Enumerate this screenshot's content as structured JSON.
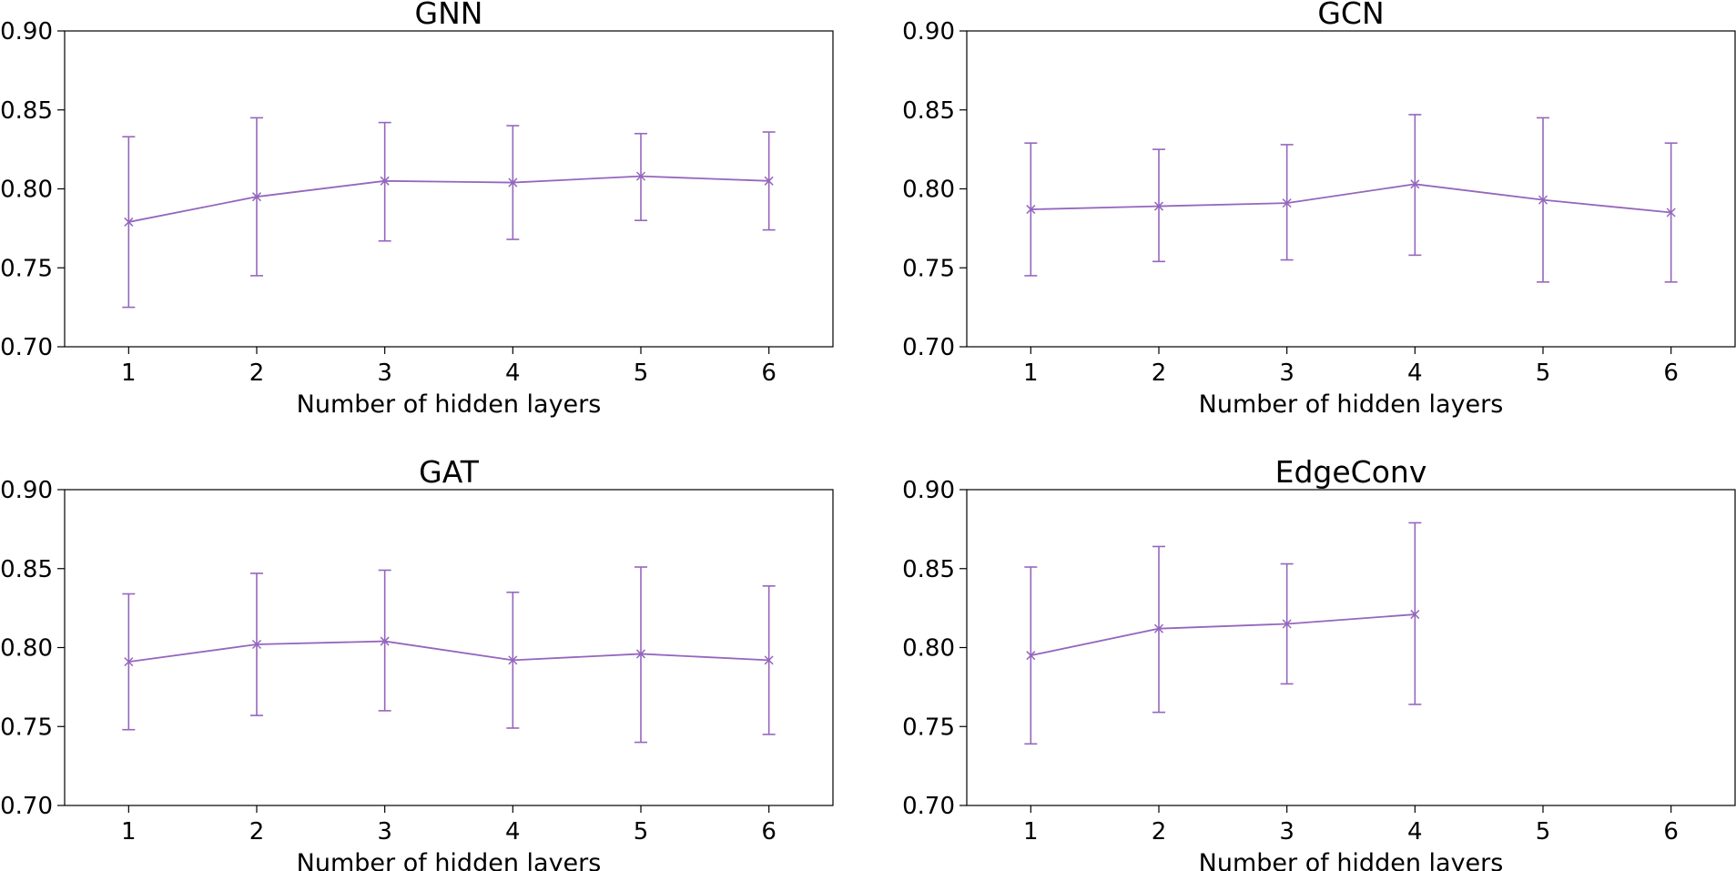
{
  "chart_data": [
    {
      "type": "line",
      "title": "GNN",
      "xlabel": "Number of hidden layers",
      "ylabel": "",
      "x": [
        1,
        2,
        3,
        4,
        5,
        6
      ],
      "xticks": [
        "1",
        "2",
        "3",
        "4",
        "5",
        "6"
      ],
      "yticks": [
        "0.70",
        "0.75",
        "0.80",
        "0.85",
        "0.90"
      ],
      "ylim": [
        0.7,
        0.9
      ],
      "xlim": [
        0.5,
        6.5
      ],
      "grid": false,
      "color": "#9467bd",
      "marker": "x",
      "series": [
        {
          "values": [
            0.779,
            0.795,
            0.805,
            0.804,
            0.808,
            0.805
          ],
          "err_low": [
            0.725,
            0.745,
            0.767,
            0.768,
            0.78,
            0.774
          ],
          "err_high": [
            0.833,
            0.845,
            0.842,
            0.84,
            0.835,
            0.836
          ]
        }
      ]
    },
    {
      "type": "line",
      "title": "GCN",
      "xlabel": "Number of hidden layers",
      "ylabel": "",
      "x": [
        1,
        2,
        3,
        4,
        5,
        6
      ],
      "xticks": [
        "1",
        "2",
        "3",
        "4",
        "5",
        "6"
      ],
      "yticks": [
        "0.70",
        "0.75",
        "0.80",
        "0.85",
        "0.90"
      ],
      "ylim": [
        0.7,
        0.9
      ],
      "xlim": [
        0.5,
        6.5
      ],
      "grid": false,
      "color": "#9467bd",
      "marker": "x",
      "series": [
        {
          "values": [
            0.787,
            0.789,
            0.791,
            0.803,
            0.793,
            0.785
          ],
          "err_low": [
            0.745,
            0.754,
            0.755,
            0.758,
            0.741,
            0.741
          ],
          "err_high": [
            0.829,
            0.825,
            0.828,
            0.847,
            0.845,
            0.829
          ]
        }
      ]
    },
    {
      "type": "line",
      "title": "GAT",
      "xlabel": "Number of hidden layers",
      "ylabel": "",
      "x": [
        1,
        2,
        3,
        4,
        5,
        6
      ],
      "xticks": [
        "1",
        "2",
        "3",
        "4",
        "5",
        "6"
      ],
      "yticks": [
        "0.70",
        "0.75",
        "0.80",
        "0.85",
        "0.90"
      ],
      "ylim": [
        0.7,
        0.9
      ],
      "xlim": [
        0.5,
        6.5
      ],
      "grid": false,
      "color": "#9467bd",
      "marker": "x",
      "series": [
        {
          "values": [
            0.791,
            0.802,
            0.804,
            0.792,
            0.796,
            0.792
          ],
          "err_low": [
            0.748,
            0.757,
            0.76,
            0.749,
            0.74,
            0.745
          ],
          "err_high": [
            0.834,
            0.847,
            0.849,
            0.835,
            0.851,
            0.839
          ]
        }
      ]
    },
    {
      "type": "line",
      "title": "EdgeConv",
      "xlabel": "Number of hidden layers",
      "ylabel": "",
      "x": [
        1,
        2,
        3,
        4
      ],
      "xticks": [
        "1",
        "2",
        "3",
        "4",
        "5",
        "6"
      ],
      "yticks": [
        "0.70",
        "0.75",
        "0.80",
        "0.85",
        "0.90"
      ],
      "ylim": [
        0.7,
        0.9
      ],
      "xlim": [
        0.5,
        6.5
      ],
      "grid": false,
      "color": "#9467bd",
      "marker": "x",
      "series": [
        {
          "values": [
            0.795,
            0.812,
            0.815,
            0.821
          ],
          "err_low": [
            0.739,
            0.759,
            0.777,
            0.764
          ],
          "err_high": [
            0.851,
            0.864,
            0.853,
            0.879
          ]
        }
      ]
    }
  ]
}
